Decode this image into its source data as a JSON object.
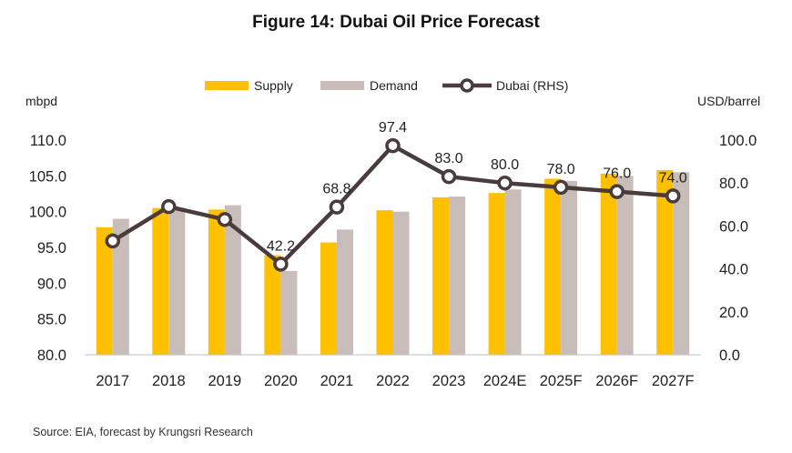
{
  "chart_data": {
    "type": "bar+line",
    "title": "Figure 14: Dubai Oil Price Forecast",
    "source": "Source: EIA, forecast by Krungsri Research",
    "categories": [
      "2017",
      "2018",
      "2019",
      "2020",
      "2021",
      "2022",
      "2023",
      "2024E",
      "2025F",
      "2026F",
      "2027F"
    ],
    "series": [
      {
        "name": "Supply",
        "axis": "left",
        "kind": "bar",
        "color": "#FFC000",
        "values": [
          97.8,
          100.5,
          100.3,
          93.9,
          95.7,
          100.2,
          102.0,
          102.6,
          104.6,
          105.3,
          105.8
        ]
      },
      {
        "name": "Demand",
        "axis": "left",
        "kind": "bar",
        "color": "#C9BDBA",
        "values": [
          99.0,
          100.5,
          100.9,
          91.7,
          97.5,
          100.0,
          102.1,
          103.1,
          104.3,
          105.0,
          105.5
        ]
      },
      {
        "name": "Dubai (RHS)",
        "axis": "right",
        "kind": "line",
        "color": "#4A3C3C",
        "values": [
          53.0,
          69.0,
          63.0,
          42.2,
          68.8,
          97.4,
          83.0,
          80.0,
          78.0,
          76.0,
          74.0
        ],
        "labels": [
          "",
          "",
          "",
          "42.2",
          "68.8",
          "97.4",
          "83.0",
          "80.0",
          "78.0",
          "76.0",
          "74.0"
        ]
      }
    ],
    "left_axis": {
      "label": "mbpd",
      "min": 80,
      "max": 110,
      "ticks": [
        "80.0",
        "85.0",
        "90.0",
        "95.0",
        "100.0",
        "105.0",
        "110.0"
      ]
    },
    "right_axis": {
      "label": "USD/barrel",
      "min": 0,
      "max": 100,
      "ticks": [
        "0.0",
        "20.0",
        "40.0",
        "60.0",
        "80.0",
        "100.0"
      ]
    },
    "legend": {
      "position": "top"
    },
    "grid": false
  }
}
